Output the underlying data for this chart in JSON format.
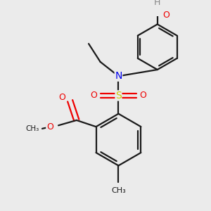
{
  "background_color": "#ebebeb",
  "bond_color": "#1a1a1a",
  "atom_colors": {
    "N": "#0000ee",
    "O": "#ee0000",
    "S": "#cccc00",
    "H": "#888888",
    "C": "#1a1a1a"
  },
  "figsize": [
    3.0,
    3.0
  ],
  "dpi": 100
}
